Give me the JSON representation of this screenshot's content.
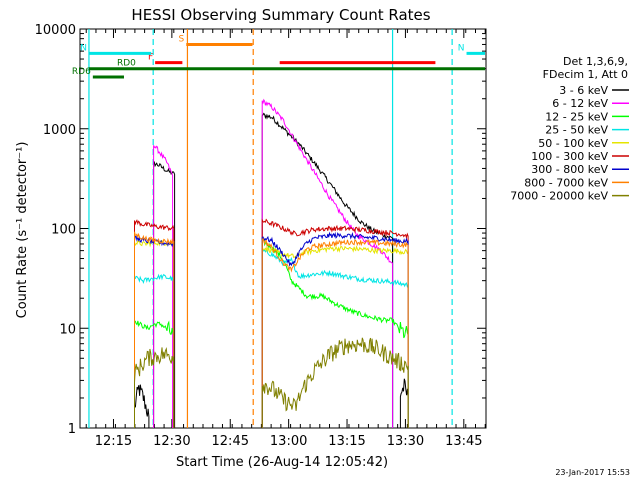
{
  "chart_data": {
    "type": "line",
    "title": "HESSI Observing Summary Count Rates",
    "xlabel": "Start Time (26-Aug-14 12:05:42)",
    "ylabel": "Count Rate (s⁻¹ detector⁻¹)",
    "x_range_min": [
      5.7,
      85
    ],
    "ylim": [
      1,
      10000
    ],
    "y_scale": "log",
    "x_ticks": [
      {
        "v": 14.3,
        "label": "12:15"
      },
      {
        "v": 29.3,
        "label": "12:30"
      },
      {
        "v": 44.3,
        "label": "12:45"
      },
      {
        "v": 59.3,
        "label": "13:00"
      },
      {
        "v": 74.3,
        "label": "13:15"
      },
      {
        "v": 89.3,
        "label": "13:30"
      },
      {
        "v": 104.3,
        "label": "13:45"
      }
    ],
    "y_ticks": [
      {
        "v": 1,
        "label": "1"
      },
      {
        "v": 10,
        "label": "10"
      },
      {
        "v": 100,
        "label": "100"
      },
      {
        "v": 1000,
        "label": "1000"
      },
      {
        "v": 10000,
        "label": "10000"
      }
    ],
    "legend_placement": "right",
    "legend_header": [
      "Det 1,3,6,9,",
      "FDecim 1, Att 0"
    ],
    "footer_date": "23-Jan-2017 15:53",
    "flags": [
      {
        "label": "RD6",
        "color": "#007000",
        "y": 3300,
        "x": [
          9,
          17
        ]
      },
      {
        "label": "RD0",
        "color": "#007000",
        "y": 4000,
        "x": [
          8,
          120
        ]
      },
      {
        "label": "F",
        "color": "#ff0000",
        "y": 4600,
        "x": [
          25,
          32
        ]
      },
      {
        "label": "N",
        "color": "#00e5e5",
        "y": 5700,
        "x": [
          8,
          24
        ]
      },
      {
        "label": "N",
        "color": "#00e5e5",
        "y": 5700,
        "x": [
          105,
          125
        ]
      },
      {
        "label": "S",
        "color": "#ff8000",
        "y": 7000,
        "x": [
          33,
          50
        ]
      },
      {
        "label": "",
        "color": "#ff0000",
        "y": 4600,
        "x": [
          57,
          97
        ]
      }
    ],
    "vlines": [
      {
        "x": 8.0,
        "color": "#00e5e5",
        "dashed": false
      },
      {
        "x": 24.5,
        "color": "#00e5e5",
        "dashed": true
      },
      {
        "x": 33.3,
        "color": "#ff8000",
        "dashed": false
      },
      {
        "x": 50.2,
        "color": "#ff8000",
        "dashed": true
      },
      {
        "x": 86.0,
        "color": "#00e5e5",
        "dashed": false
      },
      {
        "x": 101.3,
        "color": "#00e5e5",
        "dashed": true
      }
    ],
    "series": [
      {
        "name": "3 - 6 keV",
        "color": "#000000",
        "segments": [
          [
            [
              19.7,
              1.6
            ],
            [
              20.8,
              2.5
            ],
            [
              22,
              2.0
            ],
            [
              23.4,
              1.3
            ]
          ],
          [
            [
              24.6,
              450
            ],
            [
              26,
              430
            ],
            [
              28,
              380
            ],
            [
              30,
              350
            ]
          ],
          [
            [
              52.5,
              1380
            ],
            [
              55,
              1300
            ],
            [
              58,
              1000
            ],
            [
              62,
              700
            ],
            [
              66,
              450
            ],
            [
              70,
              280
            ],
            [
              74,
              170
            ],
            [
              78,
              115
            ],
            [
              81,
              95
            ],
            [
              84,
              85
            ],
            [
              86,
              80
            ]
          ],
          [
            [
              88,
              2.2
            ],
            [
              89,
              2.6
            ],
            [
              90,
              2.0
            ]
          ]
        ]
      },
      {
        "name": "6 - 12 keV",
        "color": "#ff00ff",
        "segments": [
          [
            [
              24.6,
              700
            ],
            [
              26,
              590
            ],
            [
              28,
              460
            ],
            [
              29.5,
              340
            ]
          ],
          [
            [
              52.5,
              1900
            ],
            [
              55,
              1650
            ],
            [
              58,
              1200
            ],
            [
              62,
              650
            ],
            [
              66,
              360
            ],
            [
              70,
              200
            ],
            [
              74,
              120
            ],
            [
              77,
              85
            ],
            [
              80,
              72
            ],
            [
              83,
              60
            ],
            [
              86,
              45
            ]
          ]
        ]
      },
      {
        "name": "12 - 25 keV",
        "color": "#00ff00",
        "segments": [
          [
            [
              19.7,
              12
            ],
            [
              21,
              11
            ],
            [
              23,
              10
            ],
            [
              25,
              11
            ],
            [
              26.5,
              11
            ],
            [
              28.5,
              9.5
            ],
            [
              29.8,
              8.5
            ]
          ],
          [
            [
              52.5,
              75
            ],
            [
              54,
              68
            ],
            [
              56,
              60
            ],
            [
              58,
              48
            ],
            [
              60,
              30
            ],
            [
              64,
              21
            ],
            [
              68,
              21
            ],
            [
              72,
              17
            ],
            [
              76,
              14.5
            ],
            [
              80,
              13
            ],
            [
              84,
              12
            ],
            [
              86,
              12
            ],
            [
              88,
              9.5
            ],
            [
              90,
              8.5
            ]
          ]
        ]
      },
      {
        "name": "25 - 50 keV",
        "color": "#00e5e5",
        "segments": [
          [
            [
              19.7,
              32
            ],
            [
              22,
              30
            ],
            [
              25,
              32
            ],
            [
              27,
              33
            ],
            [
              29.8,
              31
            ]
          ],
          [
            [
              52.5,
              60
            ],
            [
              55,
              55
            ],
            [
              58,
              45
            ],
            [
              60,
              48
            ],
            [
              62,
              33
            ],
            [
              66,
              35
            ],
            [
              70,
              36
            ],
            [
              74,
              33
            ],
            [
              78,
              31
            ],
            [
              82,
              30
            ],
            [
              86,
              29
            ],
            [
              88,
              28
            ],
            [
              90,
              27
            ]
          ]
        ]
      },
      {
        "name": "50 - 100 keV",
        "color": "#e5e500",
        "segments": [
          [
            [
              19.7,
              72
            ],
            [
              22,
              70
            ],
            [
              25,
              72
            ],
            [
              27,
              72
            ],
            [
              29.8,
              70
            ]
          ],
          [
            [
              52.5,
              65
            ],
            [
              55,
              60
            ],
            [
              58,
              55
            ],
            [
              61,
              52
            ],
            [
              63,
              57
            ],
            [
              66,
              60
            ],
            [
              70,
              63
            ],
            [
              74,
              63
            ],
            [
              78,
              62
            ],
            [
              82,
              60
            ],
            [
              86,
              60
            ],
            [
              90,
              58
            ]
          ]
        ]
      },
      {
        "name": "100 - 300 keV",
        "color": "#cc0000",
        "segments": [
          [
            [
              19.7,
              118
            ],
            [
              22,
              110
            ],
            [
              25,
              105
            ],
            [
              27,
              103
            ],
            [
              29.8,
              100
            ]
          ],
          [
            [
              52.5,
              120
            ],
            [
              55,
              112
            ],
            [
              58,
              100
            ],
            [
              61,
              88
            ],
            [
              63,
              92
            ],
            [
              66,
              98
            ],
            [
              70,
              100
            ],
            [
              74,
              100
            ],
            [
              78,
              97
            ],
            [
              82,
              93
            ],
            [
              86,
              90
            ],
            [
              88,
              88
            ],
            [
              90,
              84
            ]
          ]
        ]
      },
      {
        "name": "300 - 800 keV",
        "color": "#0000cc",
        "segments": [
          [
            [
              19.7,
              80
            ],
            [
              22,
              76
            ],
            [
              25,
              73
            ],
            [
              27,
              72
            ],
            [
              29.8,
              70
            ]
          ],
          [
            [
              52.5,
              82
            ],
            [
              55,
              75
            ],
            [
              58,
              55
            ],
            [
              60,
              42
            ],
            [
              62,
              58
            ],
            [
              64,
              72
            ],
            [
              66,
              80
            ],
            [
              70,
              85
            ],
            [
              74,
              85
            ],
            [
              78,
              82
            ],
            [
              82,
              80
            ],
            [
              86,
              76
            ],
            [
              90,
              74
            ]
          ]
        ]
      },
      {
        "name": "800 - 7000 keV",
        "color": "#ff8000",
        "segments": [
          [
            [
              19.7,
              88
            ],
            [
              22,
              80
            ],
            [
              25,
              76
            ],
            [
              27,
              75
            ],
            [
              29.8,
              73
            ]
          ],
          [
            [
              52.5,
              78
            ],
            [
              55,
              65
            ],
            [
              58,
              45
            ],
            [
              60,
              38
            ],
            [
              62,
              50
            ],
            [
              64,
              62
            ],
            [
              66,
              66
            ],
            [
              70,
              70
            ],
            [
              74,
              73
            ],
            [
              78,
              73
            ],
            [
              82,
              72
            ],
            [
              86,
              70
            ],
            [
              90,
              68
            ]
          ]
        ]
      },
      {
        "name": "7000 - 20000 keV",
        "color": "#808000",
        "segments": [
          [
            [
              19.7,
              3.5
            ],
            [
              21,
              4.0
            ],
            [
              23,
              5.0
            ],
            [
              25,
              5.2
            ],
            [
              27,
              5.5
            ],
            [
              29.8,
              5.2
            ]
          ],
          [
            [
              52.5,
              2.8
            ],
            [
              55,
              2.5
            ],
            [
              58,
              1.9
            ],
            [
              61,
              1.6
            ],
            [
              63,
              2.5
            ],
            [
              66,
              3.8
            ],
            [
              70,
              5.5
            ],
            [
              74,
              6.8
            ],
            [
              78,
              7.0
            ],
            [
              82,
              6.2
            ],
            [
              86,
              5.0
            ],
            [
              88,
              4.5
            ],
            [
              90,
              4.2
            ]
          ]
        ]
      }
    ]
  }
}
